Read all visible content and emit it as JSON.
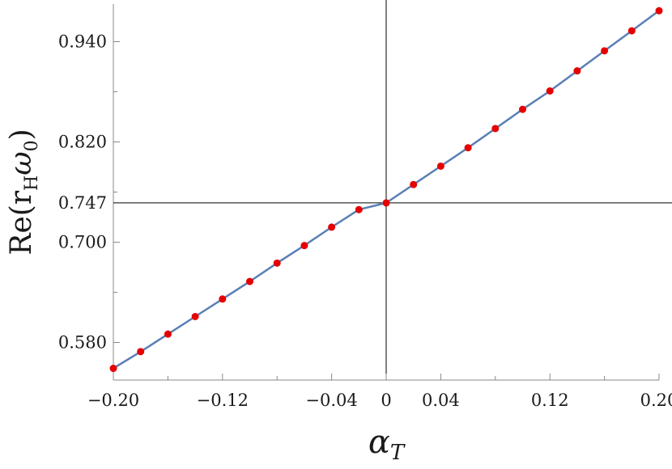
{
  "chart_data": {
    "type": "scatter",
    "title": "",
    "xlabel": "α",
    "xlabel_subscript": "T",
    "ylabel": "Re(r",
    "ylabel_subscript": "H",
    "ylabel_tail": "ω",
    "ylabel_tail_subscript": "0",
    "ylabel_close": ")",
    "xlim": [
      -0.2,
      0.2
    ],
    "ylim": [
      0.535,
      0.985
    ],
    "x_ticks": [
      -0.2,
      -0.12,
      -0.04,
      0,
      0.04,
      0.12,
      0.2
    ],
    "x_tick_labels": [
      "−0.20",
      "−0.12",
      "−0.04",
      "0",
      "0.04",
      "0.12",
      "0.20"
    ],
    "y_ticks": [
      0.58,
      0.7,
      0.82,
      0.94
    ],
    "y_tick_labels": [
      "0.580",
      "0.700",
      "0.820",
      "0.940"
    ],
    "reference_lines": {
      "x": 0,
      "y": 0.747,
      "y_label": "0.747",
      "y_label_color": "#e8643a"
    },
    "grid": false,
    "colors": {
      "line": "#5a7fb5",
      "points": "#e60000",
      "axis": "#888888",
      "reference": "#000000"
    },
    "series": [
      {
        "type": "line",
        "x": [
          -0.2,
          -0.18,
          -0.16,
          -0.14,
          -0.12,
          -0.1,
          -0.08,
          -0.06,
          -0.04,
          -0.02,
          0,
          0.02,
          0.04,
          0.06,
          0.08,
          0.1,
          0.12,
          0.14,
          0.16,
          0.18,
          0.2
        ],
        "y": [
          0.549,
          0.569,
          0.59,
          0.611,
          0.632,
          0.653,
          0.675,
          0.696,
          0.718,
          0.739,
          0.747,
          0.769,
          0.791,
          0.813,
          0.836,
          0.859,
          0.881,
          0.905,
          0.929,
          0.953,
          0.977
        ]
      },
      {
        "type": "scatter",
        "x": [
          -0.2,
          -0.18,
          -0.16,
          -0.14,
          -0.12,
          -0.1,
          -0.08,
          -0.06,
          -0.04,
          -0.02,
          0,
          0.02,
          0.04,
          0.06,
          0.08,
          0.1,
          0.12,
          0.14,
          0.16,
          0.18,
          0.2
        ],
        "y": [
          0.549,
          0.569,
          0.59,
          0.611,
          0.632,
          0.653,
          0.675,
          0.696,
          0.718,
          0.739,
          0.747,
          0.769,
          0.791,
          0.813,
          0.836,
          0.859,
          0.881,
          0.905,
          0.929,
          0.953,
          0.977
        ]
      }
    ]
  }
}
